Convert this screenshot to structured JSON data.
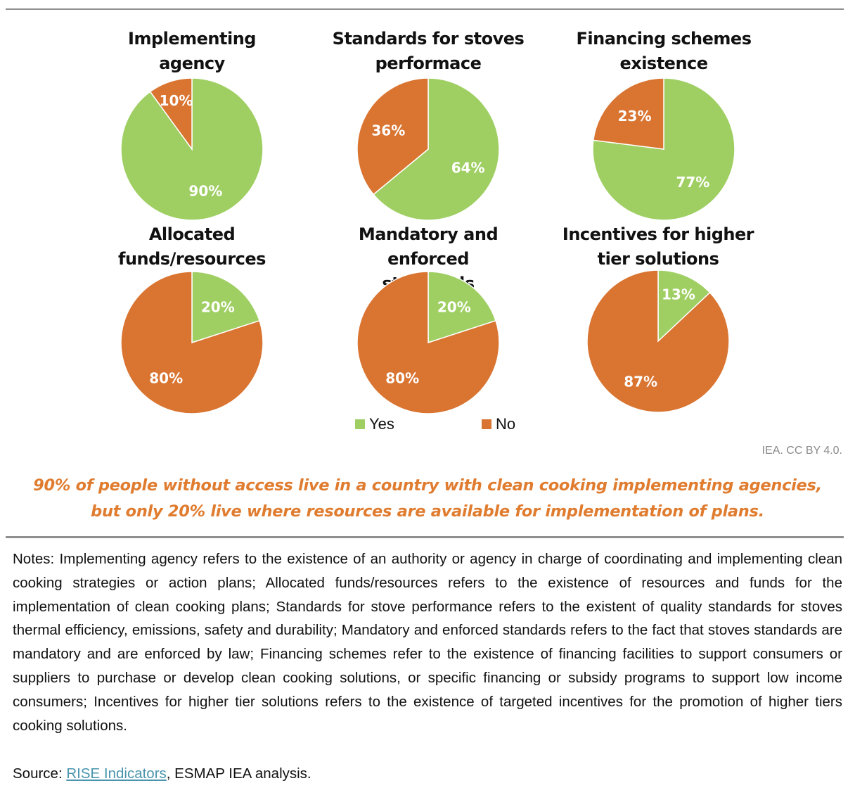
{
  "chart_data": [
    {
      "type": "pie",
      "title": "Implementing agency",
      "title_lines": [
        "Implementing",
        "agency"
      ],
      "categories": [
        "Yes",
        "No"
      ],
      "values": [
        90,
        10
      ],
      "labels": [
        "90%",
        "10%"
      ]
    },
    {
      "type": "pie",
      "title": "Standards for stoves performace",
      "title_lines": [
        "Standards for stoves",
        "performace"
      ],
      "categories": [
        "Yes",
        "No"
      ],
      "values": [
        64,
        36
      ],
      "labels": [
        "64%",
        "36%"
      ]
    },
    {
      "type": "pie",
      "title": "Financing schemes existence",
      "title_lines": [
        "Financing schemes",
        "existence"
      ],
      "categories": [
        "Yes",
        "No"
      ],
      "values": [
        77,
        23
      ],
      "labels": [
        "77%",
        "23%"
      ]
    },
    {
      "type": "pie",
      "title": "Allocated funds/resources",
      "title_lines": [
        "Allocated",
        "funds/resources"
      ],
      "categories": [
        "Yes",
        "No"
      ],
      "values": [
        20,
        80
      ],
      "labels": [
        "20%",
        "80%"
      ]
    },
    {
      "type": "pie",
      "title": "Mandatory and enforced standards",
      "title_lines": [
        "Mandatory and enforced",
        "standards"
      ],
      "categories": [
        "Yes",
        "No"
      ],
      "values": [
        20,
        80
      ],
      "labels": [
        "20%",
        "80%"
      ]
    },
    {
      "type": "pie",
      "title": "Incentives for higher tier solutions",
      "title_lines": [
        "Incentives for higher",
        "tier solutions"
      ],
      "categories": [
        "Yes",
        "No"
      ],
      "values": [
        13,
        87
      ],
      "labels": [
        "13%",
        "87%"
      ]
    }
  ],
  "colors": {
    "yes": "#9fcf63",
    "no": "#d97431",
    "headline": "#e07c2f",
    "link": "#4a95ad"
  },
  "legend": [
    {
      "label": "Yes",
      "color": "#9fcf63"
    },
    {
      "label": "No",
      "color": "#d97431"
    }
  ],
  "credit": "IEA. CC BY 4.0.",
  "headline": {
    "line1": "90% of people without access live in a country with clean cooking implementing agencies,",
    "line2": "but only 20% live where resources are available for implementation of plans."
  },
  "notes": "Notes:  Implementing agency refers to  the existence of an authority or agency in charge of coordinating and implementing clean cooking strategies or action plans; Allocated funds/resources refers to the existence of resources and funds for the implementation of clean cooking plans; Standards for stove performance refers to the existent of quality standards for stoves thermal efficiency, emissions, safety and durability; Mandatory and enforced standards refers to the fact that stoves standards are mandatory and are enforced by law; Financing  schemes refer to the existence of financing facilities to support consumers or suppliers to purchase or develop clean cooking solutions, or specific financing or subsidy programs to support low income consumers; Incentives for higher tier solutions refers to the existence of targeted incentives for the promotion of higher tiers cooking solutions.",
  "source": {
    "prefix": "Source: ",
    "link_text": "RISE Indicators",
    "suffix": ", ESMAP IEA analysis."
  }
}
